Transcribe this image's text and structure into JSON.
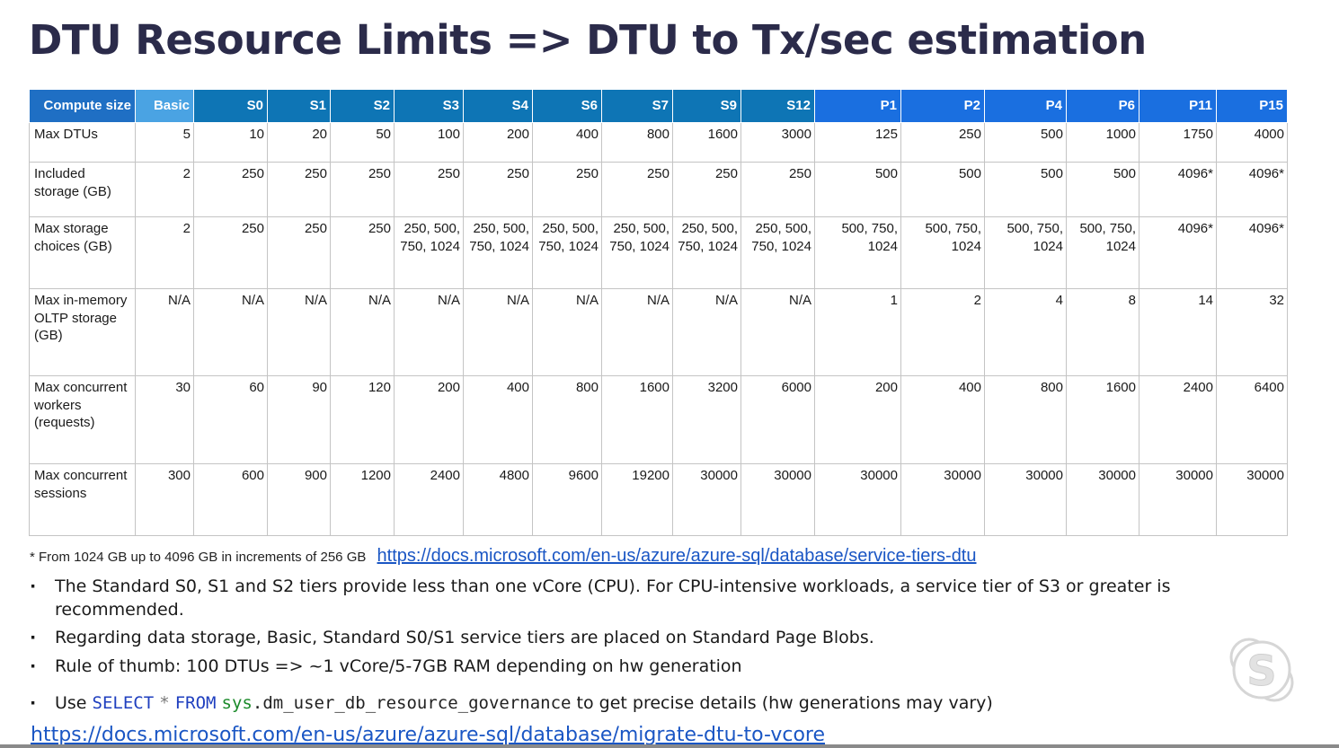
{
  "title": "DTU Resource Limits => DTU to Tx/sec estimation",
  "table": {
    "header": {
      "first": "Compute size",
      "basic": "Basic",
      "standard": [
        "S0",
        "S1",
        "S2",
        "S3",
        "S4",
        "S6",
        "S7",
        "S9",
        "S12"
      ],
      "premium": [
        "P1",
        "P2",
        "P4",
        "P6",
        "P11",
        "P15"
      ]
    },
    "rows": [
      {
        "label": "Max DTUs",
        "cells": [
          "5",
          "10",
          "20",
          "50",
          "100",
          "200",
          "400",
          "800",
          "1600",
          "3000",
          "125",
          "250",
          "500",
          "1000",
          "1750",
          "4000"
        ]
      },
      {
        "label": "Included storage (GB)",
        "cells": [
          "2",
          "250",
          "250",
          "250",
          "250",
          "250",
          "250",
          "250",
          "250",
          "250",
          "500",
          "500",
          "500",
          "500",
          "4096*",
          "4096*"
        ]
      },
      {
        "label": "Max storage choices (GB)",
        "cells": [
          "2",
          "250",
          "250",
          "250",
          "250, 500, 750, 1024",
          "250, 500, 750, 1024",
          "250, 500, 750, 1024",
          "250, 500, 750, 1024",
          "250, 500, 750, 1024",
          "250, 500, 750, 1024",
          "500, 750, 1024",
          "500, 750, 1024",
          "500, 750, 1024",
          "500, 750, 1024",
          "4096*",
          "4096*"
        ]
      },
      {
        "label": "Max in-memory OLTP storage (GB)",
        "cells": [
          "N/A",
          "N/A",
          "N/A",
          "N/A",
          "N/A",
          "N/A",
          "N/A",
          "N/A",
          "N/A",
          "N/A",
          "1",
          "2",
          "4",
          "8",
          "14",
          "32"
        ]
      },
      {
        "label": "Max concurrent workers (requests)",
        "cells": [
          "30",
          "60",
          "90",
          "120",
          "200",
          "400",
          "800",
          "1600",
          "3200",
          "6000",
          "200",
          "400",
          "800",
          "1600",
          "2400",
          "6400"
        ]
      },
      {
        "label": "Max concurrent sessions",
        "cells": [
          "300",
          "600",
          "900",
          "1200",
          "2400",
          "4800",
          "9600",
          "19200",
          "30000",
          "30000",
          "30000",
          "30000",
          "30000",
          "30000",
          "30000",
          "30000"
        ]
      }
    ]
  },
  "footnote": {
    "text": "* From 1024 GB up to 4096 GB in increments of 256 GB",
    "link": "https://docs.microsoft.com/en-us/azure/azure-sql/database/service-tiers-dtu"
  },
  "notes": {
    "n1": "The Standard S0, S1 and S2 tiers provide less than one vCore (CPU). For CPU-intensive workloads, a service tier of S3 or greater is recommended.",
    "n2": "Regarding data storage, Basic, Standard S0/S1 service tiers are placed on Standard Page Blobs.",
    "n3": "Rule of thumb: 100 DTUs => ~1 vCore/5-7GB RAM depending on hw generation",
    "n4": {
      "use": "Use",
      "select": "SELECT",
      "star": "*",
      "from": "FROM",
      "schema": "sys",
      "object": ".dm_user_db_resource_governance",
      "rest": "to get precise details (hw generations may vary)"
    }
  },
  "bottom_link": "https://docs.microsoft.com/en-us/azure/azure-sql/database/migrate-dtu-to-vcore",
  "icons": {
    "skype": "skype-logo-icon"
  },
  "colors": {
    "title": "#2b2b4a",
    "header_first": "#1f6fc4",
    "header_basic": "#4aa3e3",
    "header_standard": "#0e75b5",
    "header_premium": "#1a6fe0",
    "link": "#1a56c4"
  }
}
